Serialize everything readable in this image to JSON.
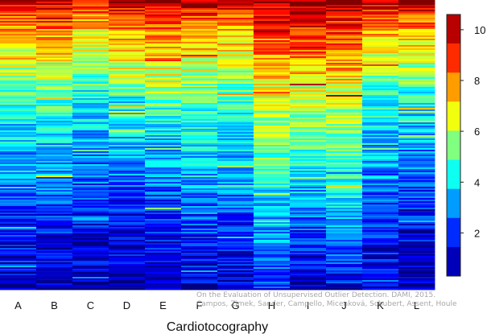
{
  "chart_data": {
    "type": "heatmap",
    "title": "",
    "xlabel": "Cardiotocography",
    "ylabel": "",
    "columns": [
      "A",
      "B",
      "C",
      "D",
      "E",
      "F",
      "G",
      "H",
      "I",
      "J",
      "K",
      "L"
    ],
    "colorbar": {
      "min": 0.3,
      "max": 10.6,
      "ticks": [
        2,
        4,
        6,
        8,
        10
      ],
      "colormap": "jet",
      "colors": [
        "#000080",
        "#0000ff",
        "#0080ff",
        "#00ffff",
        "#80ff80",
        "#ffff00",
        "#ff8000",
        "#ff0000",
        "#800000"
      ]
    },
    "column_profiles": [
      [
        [
          0.0,
          10.2
        ],
        [
          0.04,
          8.6
        ],
        [
          0.12,
          7.4
        ],
        [
          0.22,
          6.3
        ],
        [
          0.3,
          5.3
        ],
        [
          0.4,
          4.2
        ],
        [
          0.55,
          3.2
        ],
        [
          0.68,
          2.4
        ],
        [
          0.8,
          1.6
        ],
        [
          1.0,
          0.8
        ]
      ],
      [
        [
          0.0,
          10.4
        ],
        [
          0.04,
          9.2
        ],
        [
          0.12,
          7.8
        ],
        [
          0.22,
          6.6
        ],
        [
          0.3,
          5.6
        ],
        [
          0.4,
          4.4
        ],
        [
          0.55,
          3.3
        ],
        [
          0.68,
          2.5
        ],
        [
          0.8,
          1.6
        ],
        [
          1.0,
          0.8
        ]
      ],
      [
        [
          0.0,
          10.0
        ],
        [
          0.04,
          8.4
        ],
        [
          0.12,
          7.0
        ],
        [
          0.22,
          5.8
        ],
        [
          0.3,
          4.6
        ],
        [
          0.4,
          3.8
        ],
        [
          0.55,
          2.9
        ],
        [
          0.68,
          2.1
        ],
        [
          0.8,
          1.5
        ],
        [
          1.0,
          0.8
        ]
      ],
      [
        [
          0.0,
          10.5
        ],
        [
          0.04,
          9.0
        ],
        [
          0.12,
          7.6
        ],
        [
          0.22,
          6.5
        ],
        [
          0.3,
          5.5
        ],
        [
          0.4,
          4.2
        ],
        [
          0.55,
          3.1
        ],
        [
          0.68,
          2.2
        ],
        [
          0.8,
          1.4
        ],
        [
          1.0,
          0.7
        ]
      ],
      [
        [
          0.0,
          10.6
        ],
        [
          0.04,
          9.4
        ],
        [
          0.12,
          8.0
        ],
        [
          0.22,
          6.8
        ],
        [
          0.3,
          5.7
        ],
        [
          0.4,
          4.5
        ],
        [
          0.55,
          3.3
        ],
        [
          0.68,
          2.3
        ],
        [
          0.8,
          1.5
        ],
        [
          1.0,
          0.8
        ]
      ],
      [
        [
          0.0,
          10.3
        ],
        [
          0.04,
          9.0
        ],
        [
          0.12,
          7.6
        ],
        [
          0.22,
          6.4
        ],
        [
          0.3,
          5.5
        ],
        [
          0.4,
          4.6
        ],
        [
          0.55,
          3.7
        ],
        [
          0.68,
          2.8
        ],
        [
          0.8,
          2.0
        ],
        [
          1.0,
          1.0
        ]
      ],
      [
        [
          0.0,
          10.0
        ],
        [
          0.04,
          8.8
        ],
        [
          0.12,
          7.4
        ],
        [
          0.22,
          6.2
        ],
        [
          0.3,
          5.2
        ],
        [
          0.4,
          4.3
        ],
        [
          0.55,
          3.4
        ],
        [
          0.68,
          2.6
        ],
        [
          0.8,
          1.8
        ],
        [
          1.0,
          0.9
        ]
      ],
      [
        [
          0.0,
          10.4
        ],
        [
          0.04,
          9.4
        ],
        [
          0.12,
          8.4
        ],
        [
          0.22,
          7.6
        ],
        [
          0.3,
          6.6
        ],
        [
          0.4,
          5.8
        ],
        [
          0.55,
          5.0
        ],
        [
          0.68,
          4.0
        ],
        [
          0.8,
          3.2
        ],
        [
          1.0,
          2.2
        ]
      ],
      [
        [
          0.0,
          10.6
        ],
        [
          0.04,
          10.0
        ],
        [
          0.12,
          8.8
        ],
        [
          0.22,
          7.8
        ],
        [
          0.3,
          6.8
        ],
        [
          0.4,
          5.6
        ],
        [
          0.55,
          4.4
        ],
        [
          0.68,
          3.2
        ],
        [
          0.8,
          2.0
        ],
        [
          1.0,
          0.9
        ]
      ],
      [
        [
          0.0,
          10.5
        ],
        [
          0.04,
          9.6
        ],
        [
          0.12,
          8.6
        ],
        [
          0.22,
          7.6
        ],
        [
          0.3,
          6.6
        ],
        [
          0.4,
          5.8
        ],
        [
          0.55,
          5.0
        ],
        [
          0.68,
          4.2
        ],
        [
          0.8,
          3.0
        ],
        [
          1.0,
          1.4
        ]
      ],
      [
        [
          0.0,
          10.0
        ],
        [
          0.04,
          8.8
        ],
        [
          0.12,
          7.4
        ],
        [
          0.22,
          6.2
        ],
        [
          0.3,
          5.0
        ],
        [
          0.4,
          4.0
        ],
        [
          0.55,
          3.2
        ],
        [
          0.68,
          2.5
        ],
        [
          0.8,
          1.8
        ],
        [
          1.0,
          1.0
        ]
      ],
      [
        [
          0.0,
          10.3
        ],
        [
          0.04,
          9.0
        ],
        [
          0.12,
          7.4
        ],
        [
          0.22,
          6.0
        ],
        [
          0.3,
          4.8
        ],
        [
          0.4,
          3.8
        ],
        [
          0.55,
          2.9
        ],
        [
          0.68,
          2.1
        ],
        [
          0.8,
          1.4
        ],
        [
          1.0,
          0.7
        ]
      ]
    ]
  },
  "watermark": {
    "line1": "On the Evaluation of Unsupervised Outlier Detection. DAMI, 2015.",
    "line2": "Campos, Zimek, Sander, Campello, Micenková, Schubert, Assent, Houle"
  }
}
